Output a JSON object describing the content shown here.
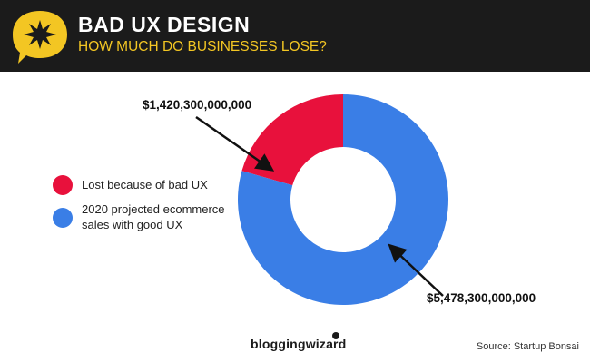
{
  "header": {
    "title": "BAD UX DESIGN",
    "subtitle": "HOW MUCH DO BUSINESSES LOSE?",
    "badge_icon": "starburst-icon",
    "title_color": "#ffffff",
    "subtitle_color": "#f3c623",
    "badge_color": "#f3c623"
  },
  "chart_data": {
    "type": "pie",
    "style": "donut",
    "title": "",
    "legend_position": "left",
    "slices": [
      {
        "name": "Lost because of bad UX",
        "value": 1420300000000,
        "label": "$1,420,300,000,000",
        "color": "#e8113c"
      },
      {
        "name": "2020 projected ecommerce sales with good UX",
        "value": 5478300000000,
        "label": "$5,478,300,000,000",
        "color": "#3a7ee6"
      }
    ],
    "legend": [
      {
        "line1": "Lost because of bad UX",
        "line2": ""
      },
      {
        "line1": "2020 projected ecommerce",
        "line2": "sales with good UX"
      }
    ]
  },
  "footer": {
    "brand": "bloggingwizard",
    "source": "Source: Startup Bonsai"
  }
}
